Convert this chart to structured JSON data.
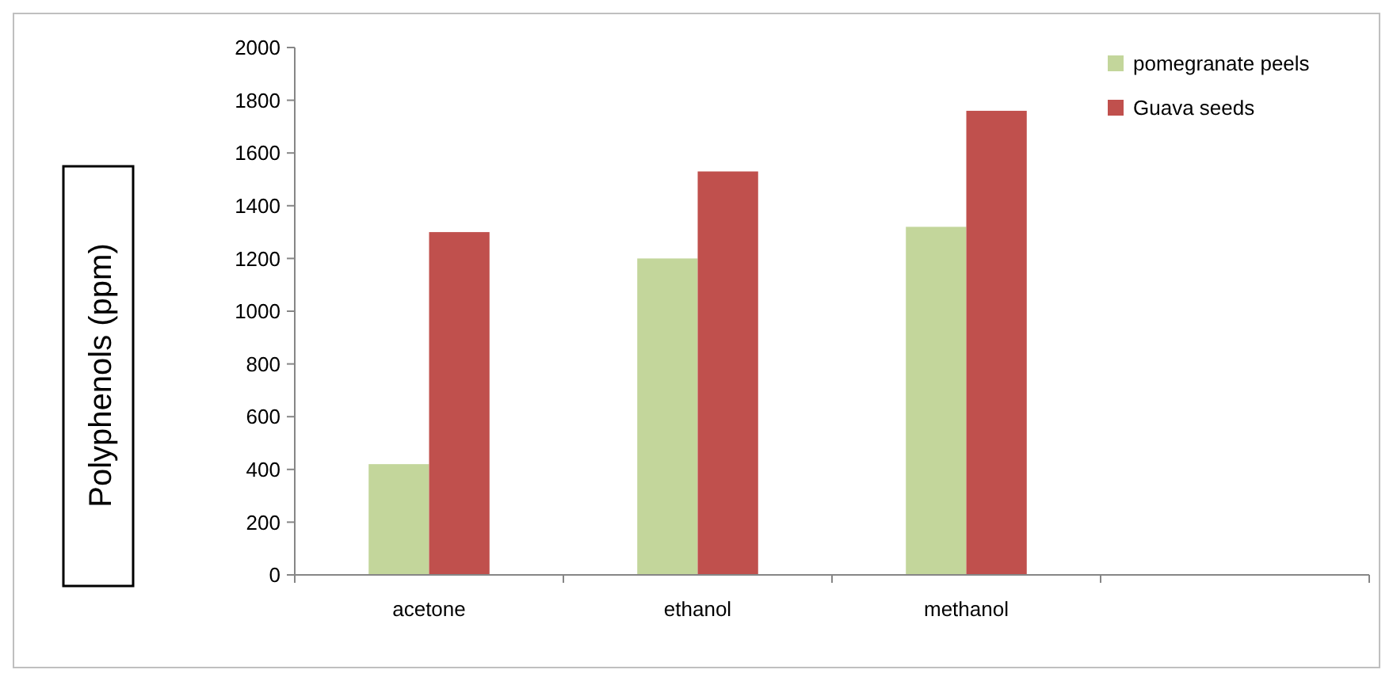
{
  "chart_data": {
    "type": "bar",
    "ylabel": "Polyphenols (ppm)",
    "categories": [
      "acetone",
      "ethanol",
      "methanol",
      null
    ],
    "series": [
      {
        "name": "pomegranate peels",
        "color": "#c3d69b",
        "values": [
          420,
          1200,
          1320,
          null
        ]
      },
      {
        "name": "Guava seeds",
        "color": "#c0504d",
        "values": [
          1300,
          1530,
          1760,
          null
        ]
      }
    ],
    "ylim": [
      0,
      2000
    ],
    "yticks": [
      0,
      200,
      400,
      600,
      800,
      1000,
      1200,
      1400,
      1600,
      1800,
      2000
    ],
    "grid": false,
    "legend": "top right"
  }
}
